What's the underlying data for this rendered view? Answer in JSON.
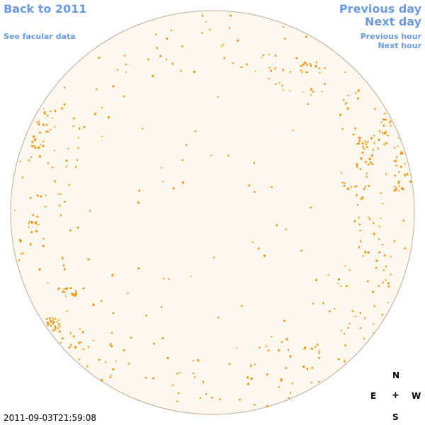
{
  "nav": {
    "back": "Back to 2011",
    "facular": "See facular data",
    "prev_day": "Previous day",
    "next_day": "Next day",
    "prev_hour": "Previous hour",
    "next_hour": "Next hour"
  },
  "compass": {
    "n": "N",
    "e": "E",
    "center": "+",
    "w": "W",
    "s": "S"
  },
  "timestamp": "2011-09-03T21:59:08",
  "colors": {
    "link": "#6a9be0",
    "disk": "#fdf8ed",
    "limb": "#b9ab96",
    "spot": "#f39009"
  }
}
